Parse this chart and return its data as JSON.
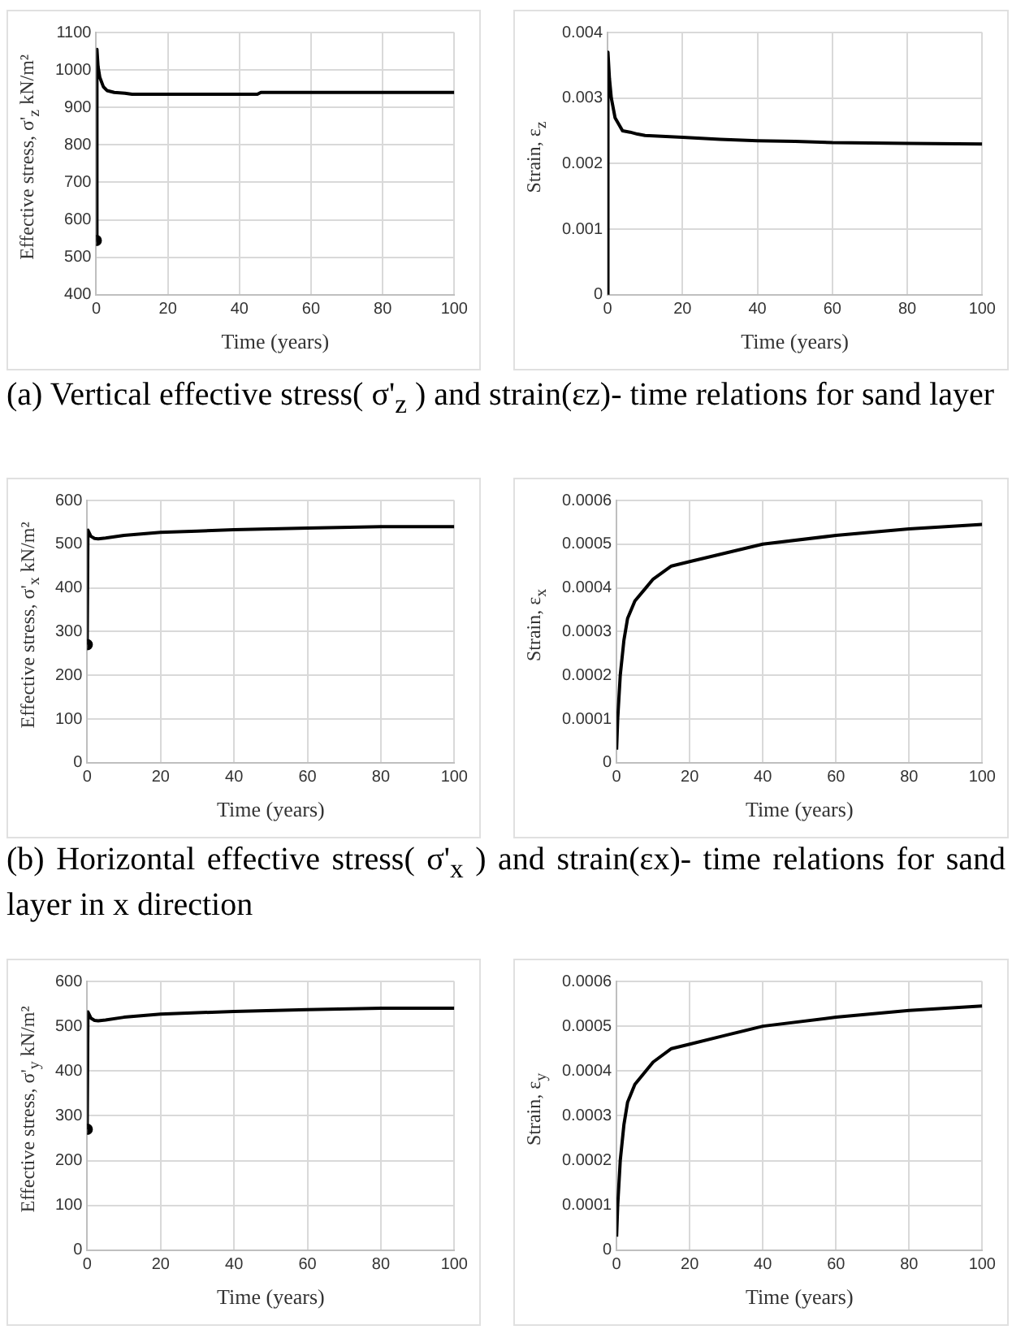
{
  "chart_data": [
    {
      "type": "line",
      "xlabel": "Time (years)",
      "ylabel": "Effective stress, σ'$_{z}$ kN/m²",
      "xlim": [
        0,
        100
      ],
      "xticks": [
        0,
        20,
        40,
        60,
        80,
        100
      ],
      "ylim": [
        400,
        1100
      ],
      "yticks": [
        400,
        500,
        600,
        700,
        800,
        900,
        1000,
        1100
      ],
      "grid": true,
      "marker": "none",
      "line_style": "solid",
      "annotations": [
        "(a) Vertical effective stress( σ'$_{z}$ ) and strain(εz)- time relations for sand layer"
      ],
      "series": [
        {
          "color": "#000000",
          "x": [
            0,
            0.2,
            0.5,
            1,
            2,
            3,
            5,
            8,
            10,
            20,
            45,
            46,
            60,
            80,
            100
          ],
          "values": [
            545,
            1055,
            1010,
            980,
            955,
            945,
            940,
            938,
            935,
            935,
            935,
            940,
            940,
            940,
            940
          ]
        },
        {
          "type": "scatter",
          "marker": "circle",
          "color": "#000000",
          "x": [
            0
          ],
          "values": [
            545
          ]
        }
      ]
    },
    {
      "type": "line",
      "xlabel": "Time (years)",
      "ylabel": "Strain, ε$_{z}$",
      "xlim": [
        0,
        100
      ],
      "xticks": [
        0,
        20,
        40,
        60,
        80,
        100
      ],
      "ylim": [
        0,
        0.004
      ],
      "yticks": [
        0,
        0.001,
        0.002,
        0.003,
        0.004
      ],
      "grid": true,
      "marker": "none",
      "line_style": "solid",
      "series": [
        {
          "color": "#000000",
          "x": [
            0,
            0.1,
            0.5,
            1,
            2,
            3,
            4,
            6,
            8,
            10,
            20,
            30,
            40,
            50,
            60,
            80,
            100
          ],
          "values": [
            0,
            0.0037,
            0.0033,
            0.003,
            0.0027,
            0.0026,
            0.0025,
            0.00248,
            0.00245,
            0.00243,
            0.0024,
            0.00237,
            0.00235,
            0.00234,
            0.00232,
            0.00231,
            0.0023
          ]
        }
      ]
    },
    {
      "type": "line",
      "xlabel": "Time (years)",
      "ylabel": "Effective stress, σ'$_{x}$ kN/m²",
      "xlim": [
        0,
        100
      ],
      "xticks": [
        0,
        20,
        40,
        60,
        80,
        100
      ],
      "ylim": [
        0,
        600
      ],
      "yticks": [
        0,
        100,
        200,
        300,
        400,
        500,
        600
      ],
      "grid": true,
      "marker": "none",
      "line_style": "solid",
      "annotations": [
        "(b) Horizontal effective stress( σ'$_{x}$ ) and strain(εx)- time relations for sand layer in x direction"
      ],
      "series": [
        {
          "color": "#000000",
          "x": [
            0,
            0.2,
            1,
            2,
            3,
            5,
            10,
            20,
            30,
            40,
            60,
            80,
            100
          ],
          "values": [
            270,
            532,
            518,
            513,
            512,
            514,
            520,
            527,
            530,
            533,
            537,
            540,
            540
          ]
        },
        {
          "type": "scatter",
          "marker": "circle",
          "color": "#000000",
          "x": [
            0
          ],
          "values": [
            270
          ]
        }
      ]
    },
    {
      "type": "line",
      "xlabel": "Time (years)",
      "ylabel": "Strain, ε$_{x}$",
      "xlim": [
        0,
        100
      ],
      "xticks": [
        0,
        20,
        40,
        60,
        80,
        100
      ],
      "ylim": [
        0,
        0.0006
      ],
      "yticks": [
        0,
        0.0001,
        0.0002,
        0.0003,
        0.0004,
        0.0005,
        0.0006
      ],
      "grid": true,
      "marker": "none",
      "line_style": "solid",
      "series": [
        {
          "color": "#000000",
          "x": [
            0,
            0.3,
            1,
            2,
            3,
            5,
            8,
            10,
            15,
            20,
            30,
            40,
            60,
            80,
            100
          ],
          "values": [
            3e-05,
            0.0001,
            0.0002,
            0.00028,
            0.00033,
            0.00037,
            0.0004,
            0.00042,
            0.00045,
            0.00046,
            0.00048,
            0.0005,
            0.00052,
            0.000535,
            0.000545
          ]
        }
      ]
    },
    {
      "type": "line",
      "xlabel": "Time (years)",
      "ylabel": "Effective stress, σ'$_{y}$ kN/m²",
      "xlim": [
        0,
        100
      ],
      "xticks": [
        0,
        20,
        40,
        60,
        80,
        100
      ],
      "ylim": [
        0,
        600
      ],
      "yticks": [
        0,
        100,
        200,
        300,
        400,
        500,
        600
      ],
      "grid": true,
      "marker": "none",
      "line_style": "solid",
      "series": [
        {
          "color": "#000000",
          "x": [
            0,
            0.2,
            1,
            2,
            3,
            5,
            10,
            20,
            30,
            40,
            60,
            80,
            100
          ],
          "values": [
            270,
            532,
            518,
            513,
            512,
            514,
            520,
            527,
            530,
            533,
            537,
            540,
            540
          ]
        },
        {
          "type": "scatter",
          "marker": "circle",
          "color": "#000000",
          "x": [
            0
          ],
          "values": [
            270
          ]
        }
      ]
    },
    {
      "type": "line",
      "xlabel": "Time (years)",
      "ylabel": "Strain, ε$_{y}$",
      "xlim": [
        0,
        100
      ],
      "xticks": [
        0,
        20,
        40,
        60,
        80,
        100
      ],
      "ylim": [
        0,
        0.0006
      ],
      "yticks": [
        0,
        0.0001,
        0.0002,
        0.0003,
        0.0004,
        0.0005,
        0.0006
      ],
      "grid": true,
      "marker": "none",
      "line_style": "solid",
      "series": [
        {
          "color": "#000000",
          "x": [
            0,
            0.3,
            1,
            2,
            3,
            5,
            8,
            10,
            15,
            20,
            30,
            40,
            60,
            80,
            100
          ],
          "values": [
            3e-05,
            0.0001,
            0.0002,
            0.00028,
            0.00033,
            0.00037,
            0.0004,
            0.00042,
            0.00045,
            0.00046,
            0.00048,
            0.0005,
            0.00052,
            0.000535,
            0.000545
          ]
        }
      ]
    }
  ]
}
